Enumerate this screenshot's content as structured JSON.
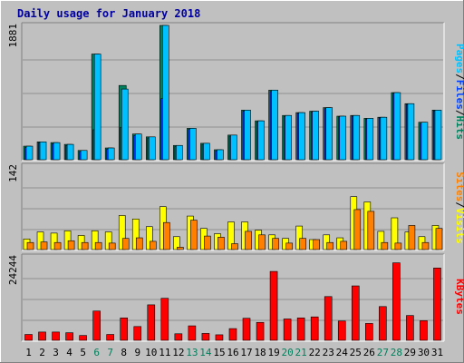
{
  "title": "Daily usage for January 2018",
  "legend": {
    "hits": "Hits",
    "files": "Files",
    "pages": "Pages",
    "visits": "Visits",
    "sites": "Sites",
    "kbytes": "KBytes",
    "separator": "/"
  },
  "colors": {
    "background": "#c0c0c0",
    "title": "#0000a0",
    "hits": "#00805c",
    "files": "#0040ff",
    "pages": "#00c0ff",
    "visits": "#ffff00",
    "sites": "#ff8000",
    "kbytes": "#ff0000",
    "weekend_label": "#00805c",
    "gridline": "#808080"
  },
  "chart_data": [
    {
      "type": "bar",
      "panel": "hits-files-pages",
      "ymax_label": "1881",
      "ylim": [
        0,
        1881
      ],
      "categories": [
        "1",
        "2",
        "3",
        "4",
        "5",
        "6",
        "7",
        "8",
        "9",
        "10",
        "11",
        "12",
        "13",
        "14",
        "15",
        "16",
        "17",
        "18",
        "19",
        "20",
        "21",
        "22",
        "23",
        "24",
        "25",
        "26",
        "27",
        "28",
        "29",
        "30",
        "31"
      ],
      "weekend_days": [
        "6",
        "7",
        "13",
        "14",
        "20",
        "21",
        "27",
        "28"
      ],
      "series": [
        {
          "name": "Hits",
          "values": [
            190,
            250,
            240,
            215,
            130,
            1480,
            165,
            1040,
            360,
            320,
            1881,
            200,
            440,
            230,
            140,
            345,
            695,
            545,
            975,
            620,
            660,
            680,
            730,
            610,
            620,
            580,
            595,
            940,
            785,
            525,
            695
          ]
        },
        {
          "name": "Files",
          "values": [
            170,
            240,
            225,
            200,
            115,
            420,
            150,
            455,
            340,
            305,
            855,
            185,
            425,
            215,
            125,
            330,
            680,
            530,
            955,
            605,
            650,
            670,
            715,
            600,
            610,
            570,
            585,
            930,
            775,
            510,
            685
          ]
        },
        {
          "name": "Pages",
          "values": [
            190,
            250,
            240,
            215,
            130,
            1480,
            165,
            990,
            360,
            320,
            1881,
            200,
            440,
            230,
            140,
            345,
            695,
            545,
            975,
            620,
            660,
            680,
            730,
            610,
            620,
            580,
            595,
            940,
            785,
            525,
            695
          ]
        }
      ]
    },
    {
      "type": "bar",
      "panel": "visits-sites",
      "ymax_label": "142",
      "ylim": [
        0,
        142
      ],
      "categories": [
        "1",
        "2",
        "3",
        "4",
        "5",
        "6",
        "7",
        "8",
        "9",
        "10",
        "11",
        "12",
        "13",
        "14",
        "15",
        "16",
        "17",
        "18",
        "19",
        "20",
        "21",
        "22",
        "23",
        "24",
        "25",
        "26",
        "27",
        "28",
        "29",
        "30",
        "31"
      ],
      "series": [
        {
          "name": "Visits",
          "values": [
            18,
            30,
            28,
            32,
            24,
            32,
            30,
            58,
            52,
            39,
            73,
            22,
            57,
            36,
            27,
            47,
            47,
            33,
            25,
            19,
            40,
            17,
            25,
            20,
            90,
            81,
            31,
            54,
            30,
            22,
            41
          ]
        },
        {
          "name": "Sites",
          "values": [
            12,
            13,
            12,
            15,
            12,
            12,
            11,
            19,
            20,
            14,
            46,
            4,
            50,
            23,
            21,
            10,
            31,
            25,
            19,
            11,
            19,
            17,
            12,
            14,
            68,
            65,
            12,
            11,
            41,
            12,
            36
          ]
        }
      ]
    },
    {
      "type": "bar",
      "panel": "kbytes",
      "ymax_label": "24244",
      "ylim": [
        0,
        24244
      ],
      "categories": [
        "1",
        "2",
        "3",
        "4",
        "5",
        "6",
        "7",
        "8",
        "9",
        "10",
        "11",
        "12",
        "13",
        "14",
        "15",
        "16",
        "17",
        "18",
        "19",
        "20",
        "21",
        "22",
        "23",
        "24",
        "25",
        "26",
        "27",
        "28",
        "29",
        "30",
        "31"
      ],
      "series": [
        {
          "name": "KBytes",
          "values": [
            1700,
            2400,
            2400,
            2200,
            1400,
            8500,
            1700,
            6500,
            4000,
            10300,
            12200,
            1900,
            4200,
            2000,
            1600,
            3400,
            6400,
            5200,
            20000,
            6200,
            6500,
            6800,
            12700,
            5600,
            15800,
            4900,
            9800,
            22500,
            7200,
            5700,
            21000
          ]
        }
      ]
    }
  ]
}
